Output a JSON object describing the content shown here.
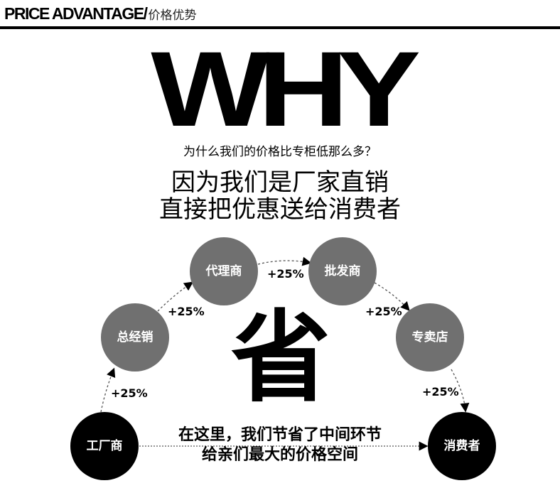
{
  "header": {
    "title_en": "PRICE ADVANTAGE/",
    "title_cn": "价格优势"
  },
  "headline": "WHY",
  "question": "为什么我们的价格比专柜低那么多？",
  "answer_lines": [
    "因为我们是厂家直销",
    "直接把优惠送给消费者"
  ],
  "center_char": "省",
  "nodes": [
    {
      "label": "工厂商",
      "color": "#000000"
    },
    {
      "label": "总经销",
      "color": "#707070"
    },
    {
      "label": "代理商",
      "color": "#707070"
    },
    {
      "label": "批发商",
      "color": "#707070"
    },
    {
      "label": "专卖店",
      "color": "#707070"
    },
    {
      "label": "消费者",
      "color": "#000000"
    }
  ],
  "markups": [
    "+25%",
    "+25%",
    "+25%",
    "+25%",
    "+25%"
  ],
  "bottom_lines": [
    "在这里，我们节省了中间环节",
    "给亲们最大的价格空间"
  ]
}
